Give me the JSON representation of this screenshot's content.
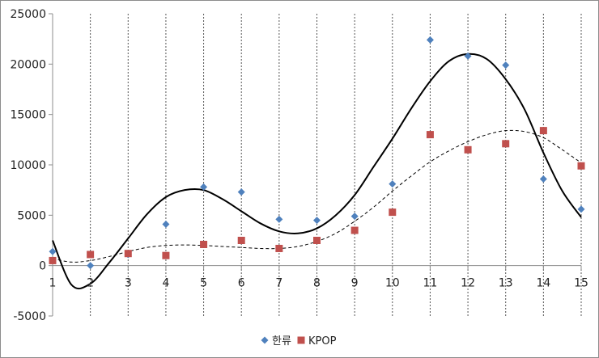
{
  "chart_data": {
    "type": "scatter",
    "x": [
      1,
      2,
      3,
      4,
      5,
      6,
      7,
      8,
      9,
      10,
      11,
      12,
      13,
      14,
      15
    ],
    "xlim": [
      1,
      15
    ],
    "ylim": [
      -5000,
      25000
    ],
    "ytick_step": 5000,
    "ytick_labels": [
      "25000",
      "20000",
      "15000",
      "10000",
      "5000",
      "0",
      "-5000"
    ],
    "xtick_labels": [
      "1",
      "2",
      "3",
      "4",
      "5",
      "6",
      "7",
      "8",
      "9",
      "10",
      "11",
      "12",
      "13",
      "14",
      "15"
    ],
    "vertical_gridlines": "dashed",
    "legend_position": "bottom",
    "series": [
      {
        "name": "한류",
        "marker": "diamond",
        "color": "#4f81bd",
        "values": [
          1400,
          0,
          1100,
          4100,
          7800,
          7300,
          4600,
          4500,
          4900,
          8100,
          22400,
          20800,
          19900,
          8600,
          5600
        ],
        "trendline": {
          "style": "solid",
          "color": "#000000",
          "points": [
            [
              1,
              2500
            ],
            [
              1.5,
              -1900
            ],
            [
              2,
              -1800
            ],
            [
              2.5,
              300
            ],
            [
              3,
              2700
            ],
            [
              3.5,
              5100
            ],
            [
              4,
              6800
            ],
            [
              4.5,
              7500
            ],
            [
              5,
              7500
            ],
            [
              5.5,
              6600
            ],
            [
              6,
              5400
            ],
            [
              6.5,
              4200
            ],
            [
              7,
              3400
            ],
            [
              7.5,
              3200
            ],
            [
              8,
              3700
            ],
            [
              8.5,
              5000
            ],
            [
              9,
              7000
            ],
            [
              9.5,
              9800
            ],
            [
              10,
              12600
            ],
            [
              10.5,
              15600
            ],
            [
              11,
              18300
            ],
            [
              11.5,
              20300
            ],
            [
              12,
              21000
            ],
            [
              12.5,
              20500
            ],
            [
              13,
              18500
            ],
            [
              13.5,
              15500
            ],
            [
              14,
              11200
            ],
            [
              14.5,
              7400
            ],
            [
              15,
              4800
            ]
          ]
        }
      },
      {
        "name": "KPOP",
        "marker": "square",
        "color": "#c0504d",
        "values": [
          500,
          1100,
          1200,
          1000,
          2100,
          2500,
          1700,
          2500,
          3500,
          5300,
          13000,
          11500,
          12100,
          13400,
          9900
        ],
        "trendline": {
          "style": "dashed",
          "color": "#000000",
          "points": [
            [
              1,
              700
            ],
            [
              1.5,
              350
            ],
            [
              2,
              500
            ],
            [
              2.5,
              900
            ],
            [
              3,
              1400
            ],
            [
              3.5,
              1800
            ],
            [
              4,
              2000
            ],
            [
              4.5,
              2050
            ],
            [
              5,
              2000
            ],
            [
              5.5,
              1900
            ],
            [
              6,
              1800
            ],
            [
              6.5,
              1700
            ],
            [
              7,
              1700
            ],
            [
              7.5,
              1900
            ],
            [
              8,
              2400
            ],
            [
              8.5,
              3200
            ],
            [
              9,
              4400
            ],
            [
              9.5,
              5800
            ],
            [
              10,
              7400
            ],
            [
              10.5,
              8900
            ],
            [
              11,
              10300
            ],
            [
              11.5,
              11400
            ],
            [
              12,
              12300
            ],
            [
              12.5,
              13000
            ],
            [
              13,
              13400
            ],
            [
              13.5,
              13300
            ],
            [
              14,
              12700
            ],
            [
              14.5,
              11500
            ],
            [
              15,
              10200
            ]
          ]
        }
      }
    ]
  }
}
